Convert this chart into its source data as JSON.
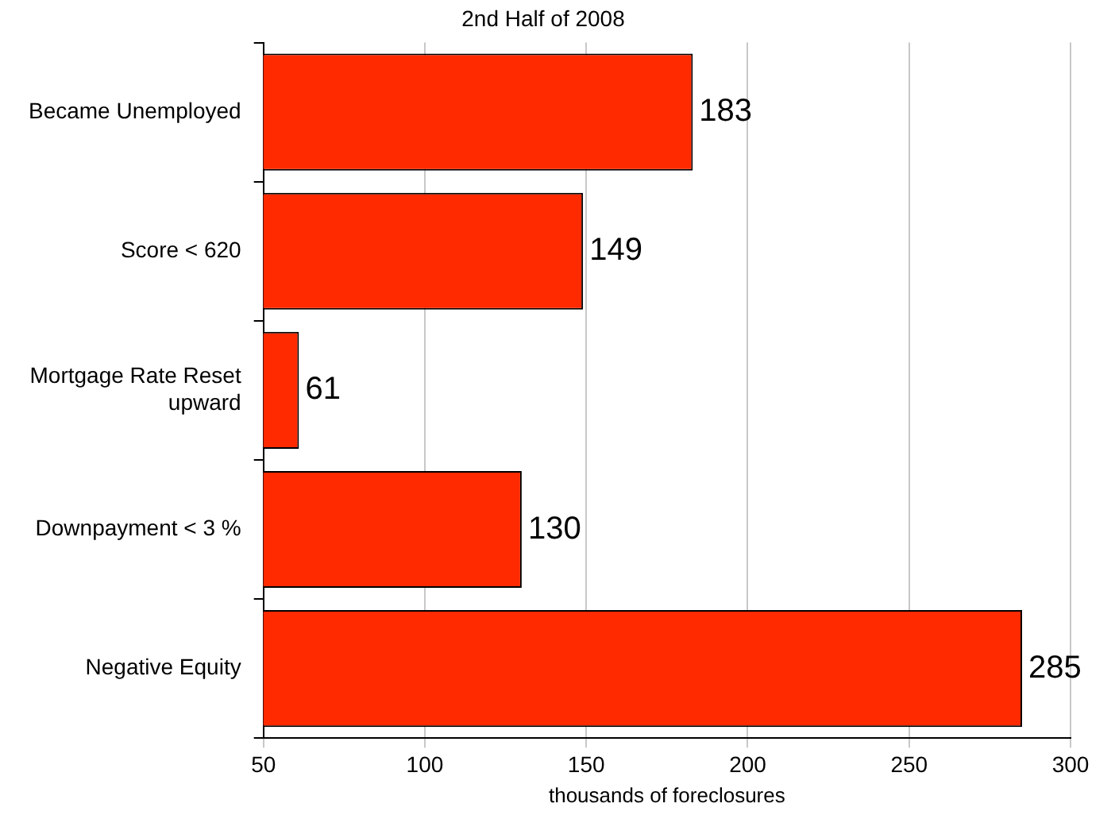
{
  "chart_data": {
    "type": "bar",
    "orientation": "horizontal",
    "subtitle": "2nd Half of 2008",
    "xlabel": "thousands of foreclosures",
    "categories": [
      "Became Unemployed",
      "Score < 620",
      "Mortgage Rate Reset upward",
      "Downpayment < 3 %",
      "Negative Equity"
    ],
    "values": [
      183,
      149,
      61,
      130,
      285
    ],
    "color": "#ff2a00",
    "xlim": [
      50,
      300
    ],
    "xticks": [
      50,
      100,
      150,
      200,
      250,
      300
    ],
    "grid": "x",
    "data_labels": true,
    "legend": false
  }
}
